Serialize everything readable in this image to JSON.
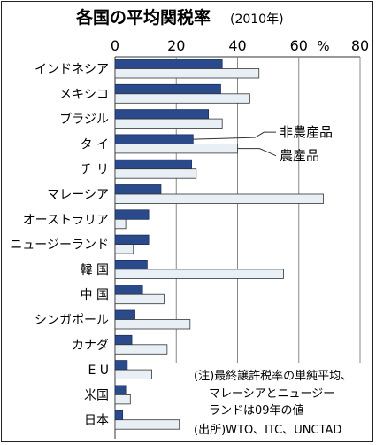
{
  "chart_data": {
    "type": "bar",
    "orientation": "horizontal",
    "title": "各国の平均関税率",
    "subtitle": "(2010年)",
    "x_unit": "%",
    "xlim": [
      0,
      80
    ],
    "x_ticks": [
      0,
      20,
      40,
      60,
      80
    ],
    "grid": true,
    "categories": [
      "インドネシア",
      "メキシコ",
      "ブラジル",
      "タ イ",
      "チ リ",
      "マレーシア",
      "オーストラリア",
      "ニュージーランド",
      "韓 国",
      "中 国",
      "シンガポール",
      "カナダ",
      "E U",
      "米国",
      "日本"
    ],
    "series": [
      {
        "name": "非農産品",
        "color": "#2b4a8c",
        "values": [
          35,
          34.5,
          30.5,
          25.5,
          25,
          15,
          11,
          11,
          10.5,
          9,
          6.5,
          5.5,
          4,
          3.5,
          2.5
        ]
      },
      {
        "name": "農産品",
        "color": "#e8f0f6",
        "values": [
          47,
          44,
          35,
          40,
          26.5,
          68,
          3.5,
          6,
          55,
          16,
          24.5,
          17,
          12,
          5,
          21
        ]
      }
    ],
    "note": "(注)最終譲許税率の単純平均、マレーシアとニュージーランドは09年の値",
    "source": "(出所)WTO、ITC、UNCTAD"
  },
  "note_lines": [
    "(注)最終譲許税率の単純平均、",
    "マレーシアとニュージー",
    "ランドは09年の値"
  ],
  "source_line": "(出所)WTO、ITC、UNCTAD",
  "colors": {
    "frame": "#222222",
    "grid": "#888888"
  }
}
